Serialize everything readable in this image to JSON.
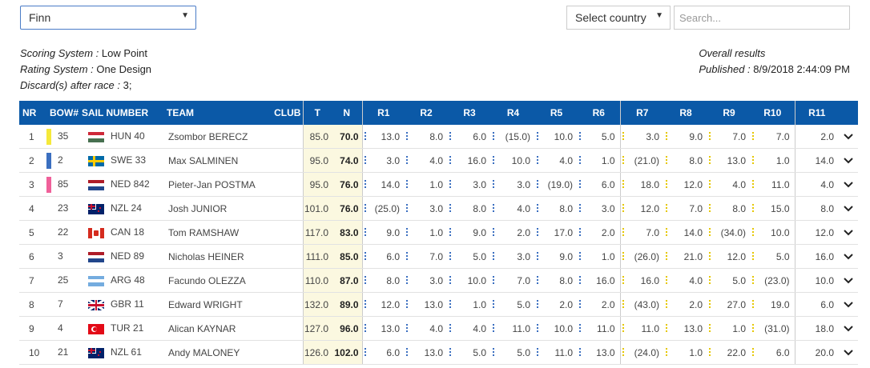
{
  "class_select": {
    "value": "Finn"
  },
  "country_select": {
    "value": "Select country"
  },
  "search": {
    "placeholder": "Search..."
  },
  "info": {
    "scoring_label": "Scoring System :",
    "scoring_value": "Low Point",
    "rating_label": "Rating System :",
    "rating_value": "One Design",
    "discard_label": "Discard(s) after race :",
    "discard_value": "3;",
    "overall": "Overall results",
    "published_label": "Published :",
    "published_value": "8/9/2018 2:44:09 PM"
  },
  "columns": {
    "nr": "NR",
    "bow": "BOW#",
    "sail": "SAIL NUMBER",
    "team": "TEAM",
    "club": "CLUB",
    "t": "T",
    "n": "N",
    "races": [
      "R1",
      "R2",
      "R3",
      "R4",
      "R5",
      "R6",
      "R7",
      "R8",
      "R9",
      "R10",
      "R11"
    ]
  },
  "colors": {
    "header": "#0b59a7",
    "blue_dot": "#3b6fc0",
    "yellow_dot": "#e6c700"
  },
  "rows": [
    {
      "nr": "1",
      "bow": "35",
      "bow_color": "#f5e93a",
      "flag": "HUN",
      "sail": "HUN 40",
      "team": "Zsombor BERECZ",
      "t": "85.0",
      "n": "70.0",
      "r": [
        "13.0",
        "8.0",
        "6.0",
        "(15.0)",
        "10.0",
        "5.0",
        "3.0",
        "9.0",
        "7.0",
        "7.0",
        "2.0"
      ]
    },
    {
      "nr": "2",
      "bow": "2",
      "bow_color": "#3b6fc0",
      "flag": "SWE",
      "sail": "SWE 33",
      "team": "Max SALMINEN",
      "t": "95.0",
      "n": "74.0",
      "r": [
        "3.0",
        "4.0",
        "16.0",
        "10.0",
        "4.0",
        "1.0",
        "(21.0)",
        "8.0",
        "13.0",
        "1.0",
        "14.0"
      ]
    },
    {
      "nr": "3",
      "bow": "85",
      "bow_color": "#f0609a",
      "flag": "NED",
      "sail": "NED 842",
      "team": "Pieter-Jan POSTMA",
      "t": "95.0",
      "n": "76.0",
      "r": [
        "14.0",
        "1.0",
        "3.0",
        "3.0",
        "(19.0)",
        "6.0",
        "18.0",
        "12.0",
        "4.0",
        "11.0",
        "4.0"
      ]
    },
    {
      "nr": "4",
      "bow": "23",
      "bow_color": "",
      "flag": "NZL",
      "sail": "NZL 24",
      "team": "Josh JUNIOR",
      "t": "101.0",
      "n": "76.0",
      "r": [
        "(25.0)",
        "3.0",
        "8.0",
        "4.0",
        "8.0",
        "3.0",
        "12.0",
        "7.0",
        "8.0",
        "15.0",
        "8.0"
      ]
    },
    {
      "nr": "5",
      "bow": "22",
      "bow_color": "",
      "flag": "CAN",
      "sail": "CAN 18",
      "team": "Tom RAMSHAW",
      "t": "117.0",
      "n": "83.0",
      "r": [
        "9.0",
        "1.0",
        "9.0",
        "2.0",
        "17.0",
        "2.0",
        "7.0",
        "14.0",
        "(34.0)",
        "10.0",
        "12.0"
      ]
    },
    {
      "nr": "6",
      "bow": "3",
      "bow_color": "",
      "flag": "NED",
      "sail": "NED 89",
      "team": "Nicholas HEINER",
      "t": "111.0",
      "n": "85.0",
      "r": [
        "6.0",
        "7.0",
        "5.0",
        "3.0",
        "9.0",
        "1.0",
        "(26.0)",
        "21.0",
        "12.0",
        "5.0",
        "16.0"
      ]
    },
    {
      "nr": "7",
      "bow": "25",
      "bow_color": "",
      "flag": "ARG",
      "sail": "ARG 48",
      "team": "Facundo OLEZZA",
      "t": "110.0",
      "n": "87.0",
      "r": [
        "8.0",
        "3.0",
        "10.0",
        "7.0",
        "8.0",
        "16.0",
        "16.0",
        "4.0",
        "5.0",
        "(23.0)",
        "10.0"
      ]
    },
    {
      "nr": "8",
      "bow": "7",
      "bow_color": "",
      "flag": "GBR",
      "sail": "GBR 11",
      "team": "Edward WRIGHT",
      "t": "132.0",
      "n": "89.0",
      "r": [
        "12.0",
        "13.0",
        "1.0",
        "5.0",
        "2.0",
        "2.0",
        "(43.0)",
        "2.0",
        "27.0",
        "19.0",
        "6.0"
      ]
    },
    {
      "nr": "9",
      "bow": "4",
      "bow_color": "",
      "flag": "TUR",
      "sail": "TUR 21",
      "team": "Alican KAYNAR",
      "t": "127.0",
      "n": "96.0",
      "r": [
        "13.0",
        "4.0",
        "4.0",
        "11.0",
        "10.0",
        "11.0",
        "11.0",
        "13.0",
        "1.0",
        "(31.0)",
        "18.0"
      ]
    },
    {
      "nr": "10",
      "bow": "21",
      "bow_color": "",
      "flag": "NZL",
      "sail": "NZL 61",
      "team": "Andy MALONEY",
      "t": "126.0",
      "n": "102.0",
      "r": [
        "6.0",
        "13.0",
        "5.0",
        "5.0",
        "11.0",
        "13.0",
        "(24.0)",
        "1.0",
        "22.0",
        "6.0",
        "20.0"
      ]
    }
  ]
}
